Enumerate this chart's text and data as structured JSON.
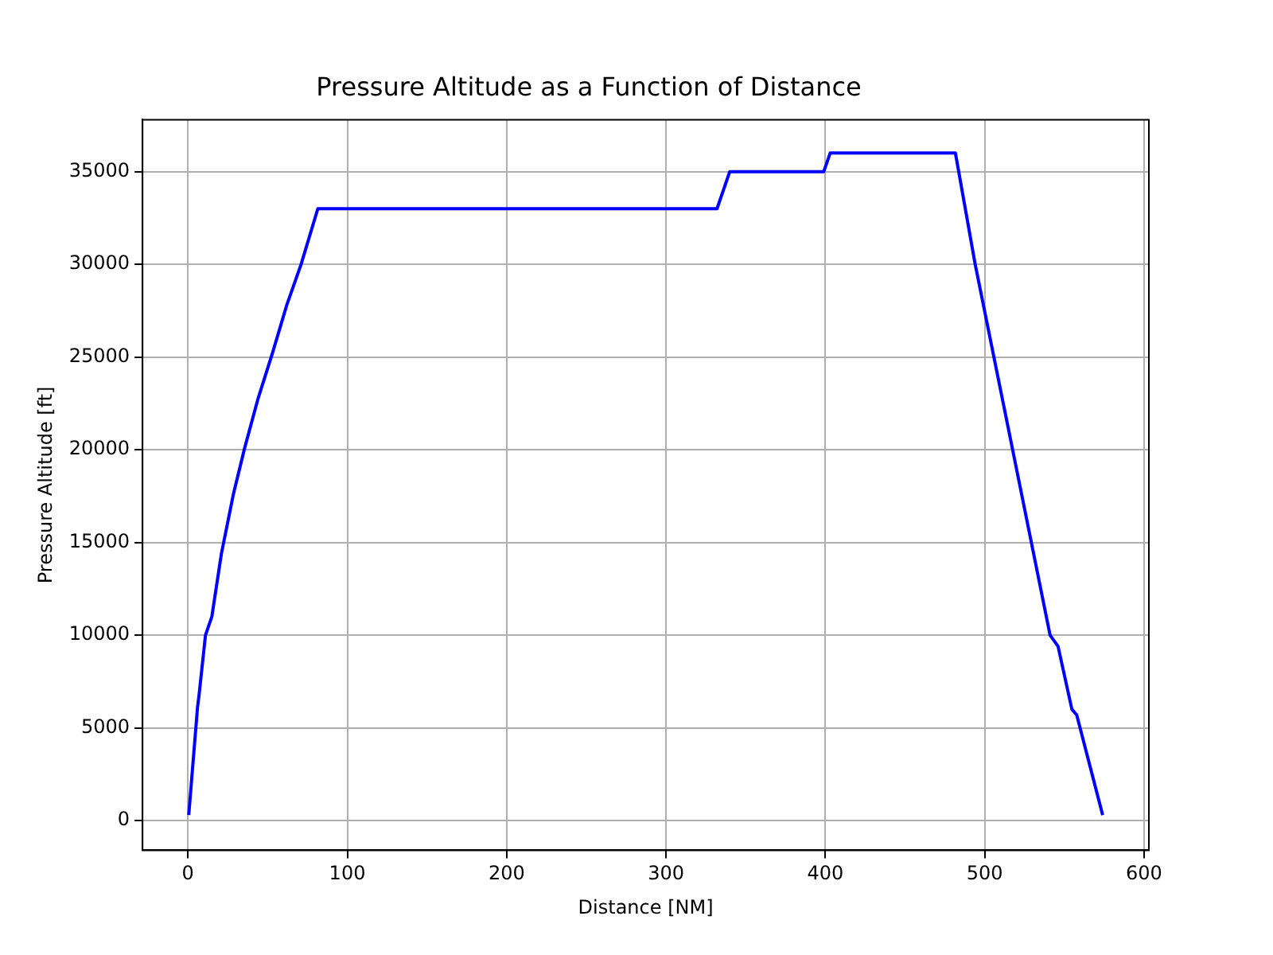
{
  "chart_data": {
    "type": "line",
    "title": "Pressure Altitude as a Function of Distance",
    "xlabel": "Distance [NM]",
    "ylabel": "Pressure Altitude [ft]",
    "xlim": [
      -28.5,
      603
    ],
    "ylim": [
      -1600,
      37800
    ],
    "xticks": [
      0,
      100,
      200,
      300,
      400,
      500,
      600
    ],
    "yticks": [
      0,
      5000,
      10000,
      15000,
      20000,
      25000,
      30000,
      35000
    ],
    "grid": true,
    "series": [
      {
        "color": "#0000ff",
        "x": [
          0.5,
          6,
          7,
          11,
          15,
          21,
          28.5,
          35.6,
          43.8,
          53,
          62,
          71,
          81.5,
          332,
          340,
          399,
          403,
          481.6,
          494,
          541,
          546,
          554.7,
          557.7,
          574
        ],
        "values": [
          300,
          6100,
          6800,
          10000,
          11000,
          14400,
          17600,
          20100,
          22700,
          25200,
          27800,
          30000,
          33000,
          33000,
          35000,
          35000,
          36000,
          36000,
          30000,
          10000,
          9400,
          6000,
          5700,
          300
        ]
      }
    ]
  }
}
